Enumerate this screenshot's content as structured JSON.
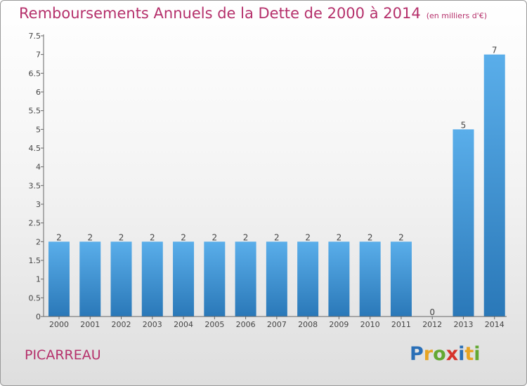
{
  "title": "Remboursements Annuels de la Dette de 2000 à 2014",
  "subtitle": "(en milliers d'€)",
  "commune": "PICARREAU",
  "logo": {
    "text": "Proxiti",
    "letters": [
      {
        "ch": "P",
        "color": "#2a6fb7"
      },
      {
        "ch": "r",
        "color": "#e7a423"
      },
      {
        "ch": "o",
        "color": "#63a832"
      },
      {
        "ch": "x",
        "color": "#d6332c"
      },
      {
        "ch": "i",
        "color": "#2a6fb7"
      },
      {
        "ch": "t",
        "color": "#e7a423"
      },
      {
        "ch": "i",
        "color": "#63a832"
      }
    ]
  },
  "colors": {
    "bar_top": "#5aaeea",
    "bar_bottom": "#2a78b8",
    "title": "#b5306b"
  },
  "chart_data": {
    "type": "bar",
    "title": "Remboursements Annuels de la Dette de 2000 à 2014",
    "xlabel": "",
    "ylabel": "",
    "categories": [
      "2000",
      "2001",
      "2002",
      "2003",
      "2004",
      "2005",
      "2006",
      "2007",
      "2008",
      "2009",
      "2010",
      "2011",
      "2012",
      "2013",
      "2014"
    ],
    "values": [
      2,
      2,
      2,
      2,
      2,
      2,
      2,
      2,
      2,
      2,
      2,
      2,
      0,
      5,
      7
    ],
    "data_labels": [
      "2",
      "2",
      "2",
      "2",
      "2",
      "2",
      "2",
      "2",
      "2",
      "2",
      "2",
      "2",
      "0",
      "5",
      "7"
    ],
    "yticks": [
      "0",
      "0.5",
      "1",
      "1.5",
      "2",
      "2.5",
      "3",
      "3.5",
      "4",
      "4.5",
      "5",
      "5.5",
      "6",
      "6.5",
      "7",
      "7.5"
    ],
    "ylim": [
      0,
      7.5
    ],
    "grid": false
  }
}
